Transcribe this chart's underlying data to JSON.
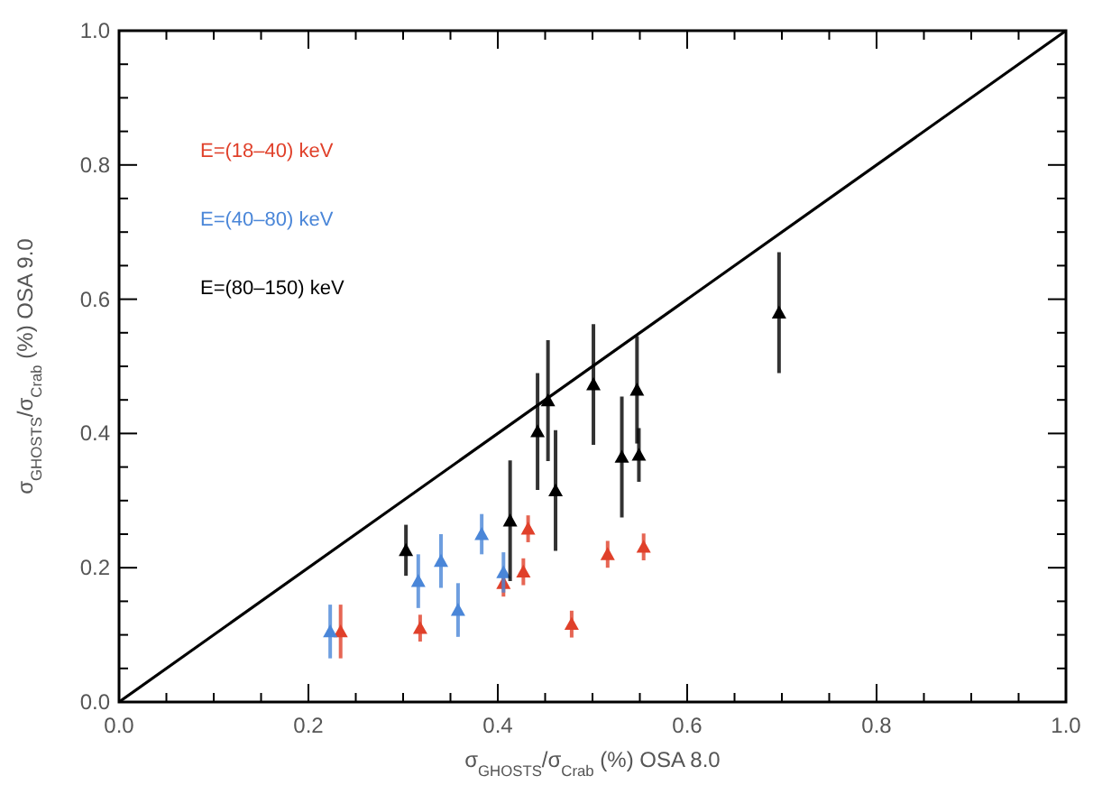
{
  "chart_data": {
    "type": "scatter",
    "xlabel": "σ$_{GHOSTS}$/σ$_{Crab}$ (%) OSA 8.0",
    "ylabel": "σ$_{GHOSTS}$/σ$_{Crab}$ (%) OSA 9.0",
    "xlim": [
      0,
      1
    ],
    "ylim": [
      0,
      1
    ],
    "xticks": [
      {
        "value": 0,
        "label": "0.0"
      },
      0.2,
      0.4,
      0.6,
      0.8,
      {
        "value": 1,
        "label": "1.0"
      }
    ],
    "yticks": [
      {
        "value": 0,
        "label": "0.0"
      },
      0.2,
      0.4,
      0.6,
      0.8,
      {
        "value": 1,
        "label": "1.0"
      }
    ],
    "grid": false,
    "legend": "top left",
    "series": [
      {
        "name": "E=(18–40) keV",
        "color": "#e0402a",
        "x": [
          0.234,
          0.318,
          0.406,
          0.427,
          0.432,
          0.478,
          0.516,
          0.554
        ],
        "values": [
          0.105,
          0.11,
          0.177,
          0.194,
          0.258,
          0.116,
          0.22,
          0.231
        ],
        "errors": [
          0.04,
          0.02,
          0.02,
          0.02,
          0.02,
          0.02,
          0.02,
          0.02
        ],
        "marker": "triangle"
      },
      {
        "name": "E=(40–80) keV",
        "color": "#4a86d8",
        "x": [
          0.223,
          0.316,
          0.34,
          0.358,
          0.383,
          0.406
        ],
        "values": [
          0.105,
          0.18,
          0.21,
          0.137,
          0.25,
          0.193
        ],
        "errors": [
          0.04,
          0.04,
          0.04,
          0.04,
          0.03,
          0.03
        ],
        "marker": "triangle"
      },
      {
        "name": "E=(80–150) keV",
        "color": "#000000",
        "x": [
          0.303,
          0.413,
          0.442,
          0.453,
          0.461,
          0.501,
          0.531,
          0.547,
          0.549,
          0.697
        ],
        "values": [
          0.226,
          0.27,
          0.403,
          0.449,
          0.315,
          0.473,
          0.365,
          0.465,
          0.368,
          0.58
        ],
        "errors": [
          0.038,
          0.09,
          0.087,
          0.09,
          0.09,
          0.09,
          0.09,
          0.08,
          0.04,
          0.09
        ],
        "marker": "triangle"
      },
      {
        "type": "line",
        "color": "#000000",
        "x": [
          0,
          1
        ],
        "values": [
          0,
          1
        ],
        "marker": "none"
      }
    ]
  }
}
